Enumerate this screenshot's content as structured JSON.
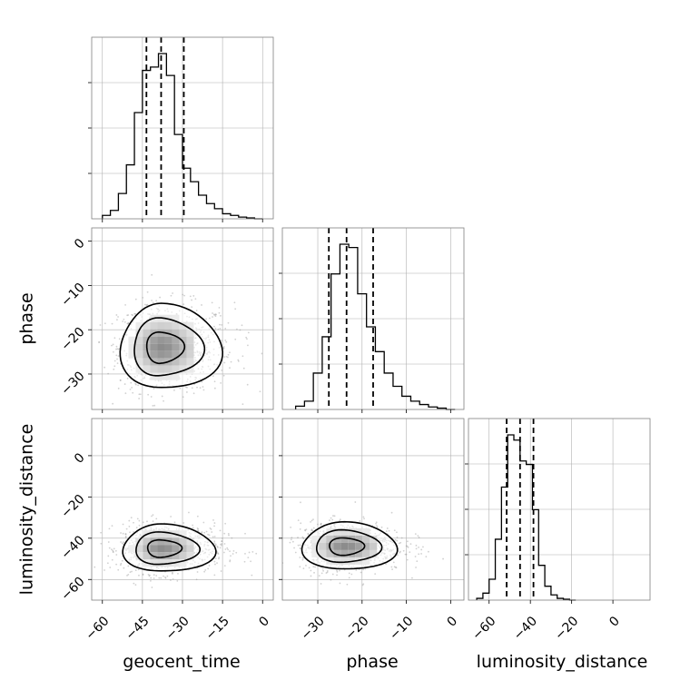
{
  "chart_data": {
    "type": "corner",
    "parameters": [
      "geocent_time",
      "phase",
      "luminosity_distance"
    ],
    "axis_labels": {
      "x": [
        "geocent_time",
        "phase",
        "luminosity_distance"
      ],
      "y": [
        "phase",
        "luminosity_distance"
      ]
    },
    "ranges": {
      "geocent_time": [
        -64,
        4
      ],
      "phase": [
        -38,
        3
      ],
      "luminosity_distance": [
        -70,
        18
      ]
    },
    "ticks": {
      "geocent_time": {
        "values": [
          -60,
          -45,
          -30,
          -15,
          0
        ],
        "labels": [
          "−60",
          "−45",
          "−30",
          "−15",
          "0"
        ]
      },
      "phase_x": {
        "values": [
          -30,
          -20,
          -10,
          0
        ],
        "labels": [
          "−30",
          "−20",
          "−10",
          "0"
        ]
      },
      "phase_y": {
        "values": [
          -30,
          -20,
          -10,
          0
        ],
        "labels": [
          "−30",
          "−20",
          "−10",
          "0"
        ]
      },
      "luminosity_distance_x": {
        "values": [
          -60,
          -40,
          -20,
          0
        ],
        "labels": [
          "−60",
          "−40",
          "−20",
          "0"
        ]
      },
      "luminosity_distance_y": {
        "values": [
          -60,
          -40,
          -20,
          0
        ],
        "labels": [
          "−60",
          "−40",
          "−20",
          "0"
        ]
      }
    },
    "histograms": [
      {
        "parameter": "geocent_time",
        "bin_edges": [
          -60,
          -57,
          -54,
          -51,
          -48,
          -45,
          -42,
          -39,
          -36,
          -33,
          -30,
          -27,
          -24,
          -21,
          -18,
          -15,
          -12,
          -9,
          -6,
          -3,
          0
        ],
        "counts": [
          0.02,
          0.05,
          0.15,
          0.32,
          0.63,
          0.88,
          0.9,
          0.98,
          0.85,
          0.5,
          0.3,
          0.22,
          0.14,
          0.09,
          0.06,
          0.03,
          0.02,
          0.01,
          0.005,
          0
        ],
        "quantiles": [
          -43.5,
          -38,
          -29.5
        ]
      },
      {
        "parameter": "phase",
        "bin_edges": [
          -35,
          -33,
          -31,
          -29,
          -27,
          -25,
          -23,
          -21,
          -19,
          -17,
          -15,
          -13,
          -11,
          -9,
          -7,
          -5,
          -3,
          -1,
          1
        ],
        "counts": [
          0.02,
          0.05,
          0.22,
          0.44,
          0.82,
          1.0,
          0.98,
          0.7,
          0.5,
          0.35,
          0.22,
          0.14,
          0.08,
          0.05,
          0.03,
          0.015,
          0.008,
          0
        ],
        "quantiles": [
          -27.5,
          -23.5,
          -17.5
        ]
      },
      {
        "parameter": "luminosity_distance",
        "bin_edges": [
          -66,
          -63,
          -60,
          -57,
          -54,
          -51,
          -48,
          -45,
          -42,
          -39,
          -36,
          -33,
          -30,
          -27,
          -24,
          -21,
          -18
        ],
        "counts": [
          0.01,
          0.04,
          0.12,
          0.35,
          0.65,
          0.95,
          0.92,
          0.8,
          0.78,
          0.52,
          0.2,
          0.08,
          0.03,
          0.01,
          0.005,
          0
        ],
        "quantiles": [
          -51.5,
          -45,
          -38.5
        ]
      }
    ],
    "joint_distributions": [
      {
        "x": "geocent_time",
        "y": "phase",
        "x_center": -38,
        "y_center": -24,
        "x_sigma": 8,
        "y_sigma": 5,
        "x_skew": 7
      },
      {
        "x": "geocent_time",
        "y": "luminosity_distance",
        "x_center": -38,
        "y_center": -45,
        "x_sigma": 7.5,
        "y_sigma": 6,
        "x_skew": 6
      },
      {
        "x": "phase",
        "y": "luminosity_distance",
        "x_center": -24,
        "y_center": -44,
        "x_sigma": 5,
        "y_sigma": 6,
        "x_skew": 3.5
      }
    ],
    "contour_levels": 3,
    "grid": true,
    "colors": {
      "line": "#000000",
      "scatter": "#999999",
      "grid": "#b0b0b0",
      "frame": "#808080"
    }
  }
}
